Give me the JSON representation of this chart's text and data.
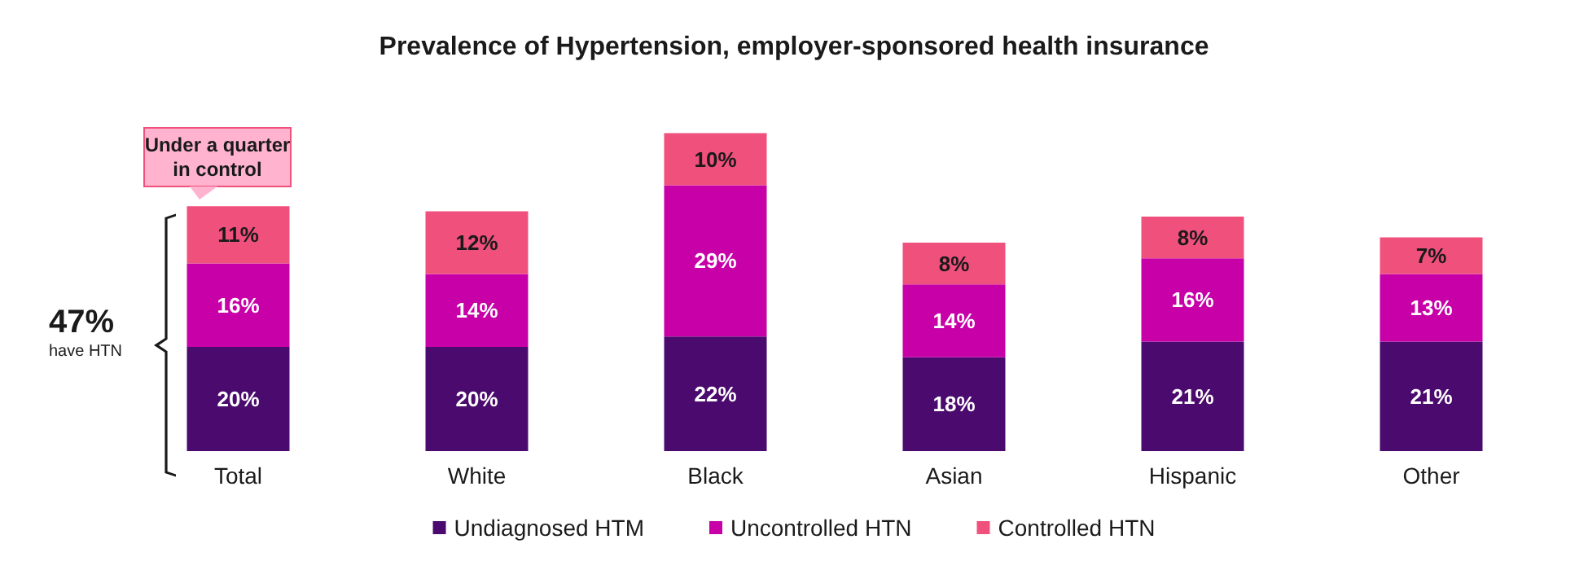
{
  "chart_data": {
    "type": "bar",
    "stacked": true,
    "title": "Prevalence of Hypertension, employer-sponsored health insurance",
    "categories": [
      "Total",
      "White",
      "Black",
      "Asian",
      "Hispanic",
      "Other"
    ],
    "series": [
      {
        "name": "Undiagnosed HTM",
        "color": "#4b0b6e",
        "values": [
          20,
          20,
          22,
          18,
          21,
          21
        ],
        "value_labels": [
          "20%",
          "20%",
          "22%",
          "18%",
          "21%",
          "21%"
        ]
      },
      {
        "name": "Uncontrolled HTN",
        "color": "#c700a8",
        "values": [
          16,
          14,
          29,
          14,
          16,
          13
        ],
        "value_labels": [
          "16%",
          "14%",
          "29%",
          "14%",
          "16%",
          "13%"
        ]
      },
      {
        "name": "Controlled HTN",
        "color": "#f0507c",
        "values": [
          11,
          12,
          10,
          8,
          8,
          7
        ],
        "value_labels": [
          "11%",
          "12%",
          "10%",
          "8%",
          "8%",
          "7%"
        ]
      }
    ],
    "annotations": [
      "Under a quarter\nin control",
      "47%",
      "have HTN"
    ],
    "legend": "bottom"
  }
}
